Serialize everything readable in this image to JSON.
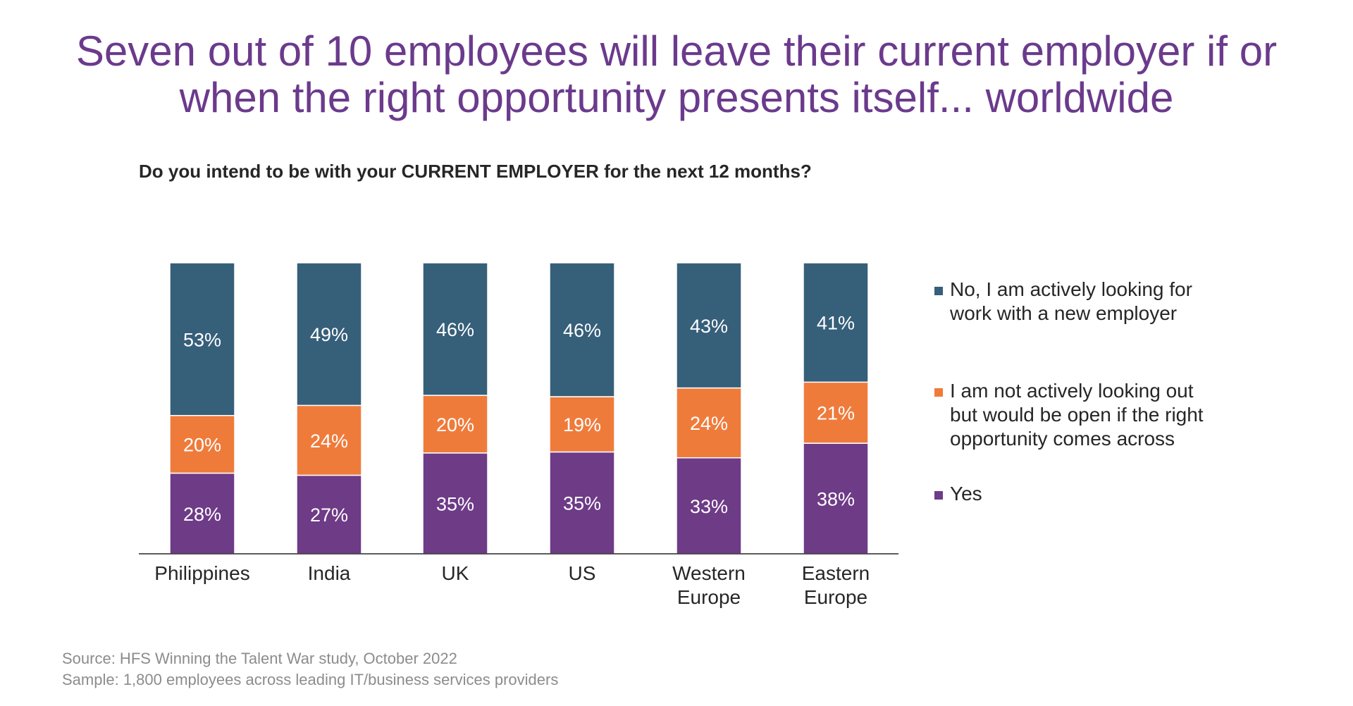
{
  "title": {
    "line1": "Seven out of 10 employees will leave their current employer if or",
    "line2": "when the right opportunity presents itself... worldwide"
  },
  "subtitle": "Do you intend to be with your CURRENT EMPLOYER for the next 12 months?",
  "colors": {
    "no": "#365f7a",
    "open": "#ef7b3b",
    "yes": "#6e3b87",
    "axis": "#262626",
    "bar_label": "#ffffff"
  },
  "chart_data": {
    "type": "bar",
    "stacked": true,
    "categories": [
      "Philippines",
      "India",
      "UK",
      "US",
      "Western Europe",
      "Eastern Europe"
    ],
    "category_lines": [
      [
        "Philippines"
      ],
      [
        "India"
      ],
      [
        "UK"
      ],
      [
        "US"
      ],
      [
        "Western",
        "Europe"
      ],
      [
        "Eastern",
        "Europe"
      ]
    ],
    "series": [
      {
        "name": "Yes",
        "key": "yes",
        "values": [
          28,
          27,
          35,
          35,
          33,
          38
        ]
      },
      {
        "name": "I am not actively looking out but would be open if the right opportunity comes across",
        "key": "open",
        "values": [
          20,
          24,
          20,
          19,
          24,
          21
        ]
      },
      {
        "name": "No, I am actively looking for work with a new employer",
        "key": "no",
        "values": [
          53,
          49,
          46,
          46,
          43,
          41
        ]
      }
    ],
    "value_suffix": "%",
    "legend_position": "right",
    "grid": false
  },
  "legend": [
    {
      "key": "no",
      "lines": [
        "No, I am actively looking for",
        "work with a new employer"
      ]
    },
    {
      "key": "open",
      "lines": [
        "I am not actively looking out",
        "but would be open if the right",
        "opportunity comes across"
      ]
    },
    {
      "key": "yes",
      "lines": [
        "Yes"
      ]
    }
  ],
  "footer": {
    "source": "Source: HFS Winning the Talent War study, October 2022",
    "sample": "Sample: 1,800 employees across leading IT/business services providers"
  }
}
